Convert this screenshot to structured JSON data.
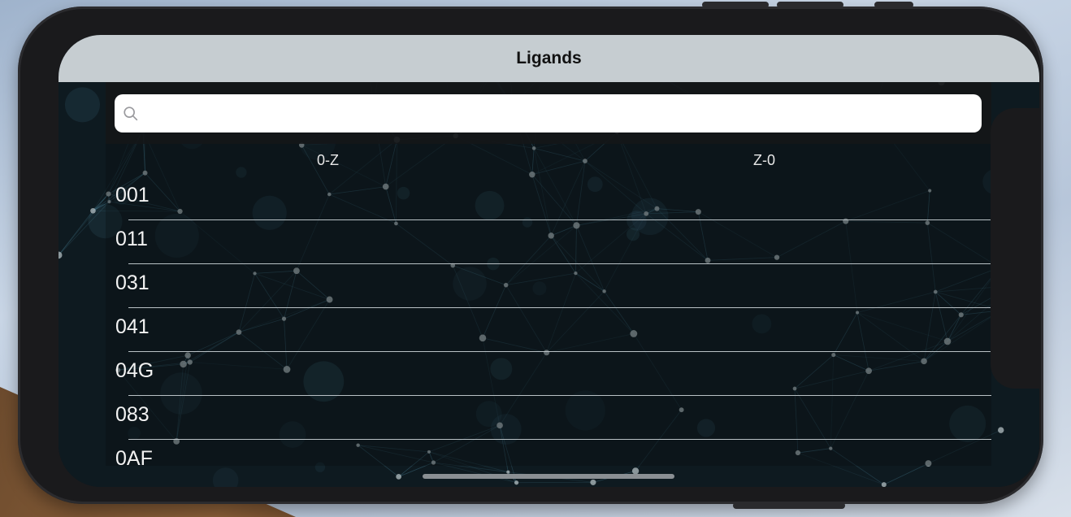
{
  "navigation": {
    "title": "Ligands"
  },
  "search": {
    "placeholder": "",
    "value": ""
  },
  "sort": {
    "ascending_label": "0-Z",
    "descending_label": "Z-0"
  },
  "ligands": [
    {
      "label": "001"
    },
    {
      "label": "011"
    },
    {
      "label": "031"
    },
    {
      "label": "041"
    },
    {
      "label": "04G"
    },
    {
      "label": "083"
    },
    {
      "label": "0AF"
    }
  ],
  "colors": {
    "nav_bar": "#c6cdd1",
    "background": "#0e1a20",
    "network_accent": "#5fa8c4",
    "text": "#f2f2f2"
  },
  "icons": {
    "search": "magnifying-glass"
  }
}
